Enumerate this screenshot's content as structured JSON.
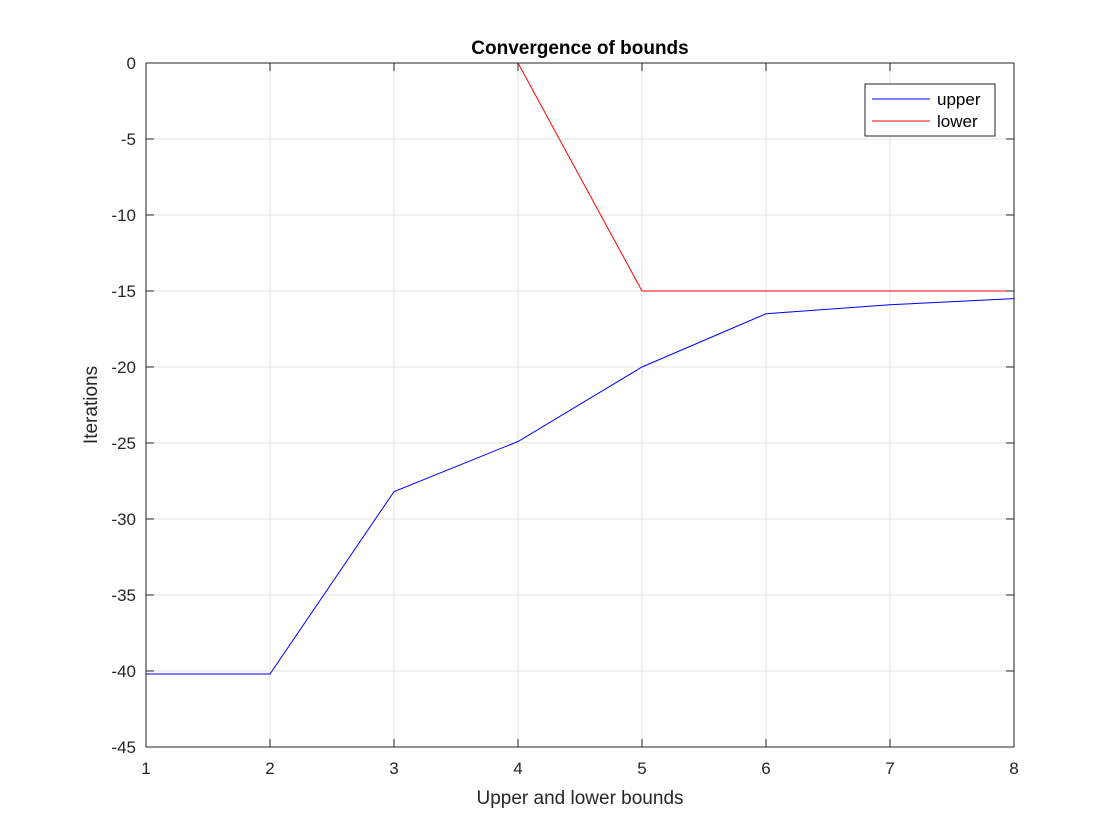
{
  "chart_data": {
    "type": "line",
    "title": "Convergence of bounds",
    "xlabel": "Upper and lower bounds",
    "ylabel": "Iterations",
    "xlim": [
      1,
      8
    ],
    "ylim": [
      -45,
      0
    ],
    "xticks": [
      1,
      2,
      3,
      4,
      5,
      6,
      7,
      8
    ],
    "yticks": [
      0,
      -5,
      -10,
      -15,
      -20,
      -25,
      -30,
      -35,
      -40,
      -45
    ],
    "grid": true,
    "legend_position": "top-right",
    "x": [
      1,
      2,
      3,
      4,
      5,
      6,
      7,
      8
    ],
    "series": [
      {
        "name": "upper",
        "color": "#0000ff",
        "values": [
          -40.2,
          -40.2,
          -28.2,
          -24.9,
          -20.0,
          -16.5,
          -15.9,
          -15.5
        ]
      },
      {
        "name": "lower",
        "color": "#ff0000",
        "values": [
          0,
          0,
          0,
          0,
          -15.0,
          -15.0,
          -15.0,
          -15.0
        ]
      }
    ]
  }
}
